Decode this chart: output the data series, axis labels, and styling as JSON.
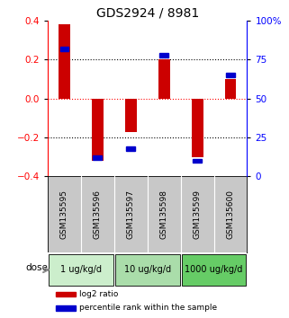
{
  "title": "GDS2924 / 8981",
  "samples": [
    "GSM135595",
    "GSM135596",
    "GSM135597",
    "GSM135598",
    "GSM135599",
    "GSM135600"
  ],
  "log2_ratio": [
    0.38,
    -0.32,
    -0.17,
    0.2,
    -0.3,
    0.1
  ],
  "percentile": [
    82,
    12,
    18,
    78,
    10,
    65
  ],
  "ylim_left": [
    -0.4,
    0.4
  ],
  "ylim_right": [
    0,
    100
  ],
  "yticks_left": [
    -0.4,
    -0.2,
    0.0,
    0.2,
    0.4
  ],
  "yticks_right": [
    0,
    25,
    50,
    75,
    100
  ],
  "ytick_labels_right": [
    "0",
    "25",
    "50",
    "75",
    "100%"
  ],
  "hlines": [
    [
      -0.2,
      "black"
    ],
    [
      0.0,
      "red"
    ],
    [
      0.2,
      "black"
    ]
  ],
  "groups": [
    {
      "label": "1 ug/kg/d",
      "indices": [
        0,
        1
      ],
      "color": "#cceecc"
    },
    {
      "label": "10 ug/kg/d",
      "indices": [
        2,
        3
      ],
      "color": "#aaddaa"
    },
    {
      "label": "1000 ug/kg/d",
      "indices": [
        4,
        5
      ],
      "color": "#66cc66"
    }
  ],
  "bar_color": "#cc0000",
  "percentile_color": "#0000cc",
  "bar_width": 0.35,
  "sample_box_color": "#c8c8c8",
  "dose_label": "dose",
  "legend_red": "log2 ratio",
  "legend_blue": "percentile rank within the sample",
  "background_color": "#ffffff",
  "title_fontsize": 10,
  "axis_fontsize": 7.5,
  "tick_fontsize": 7.5
}
